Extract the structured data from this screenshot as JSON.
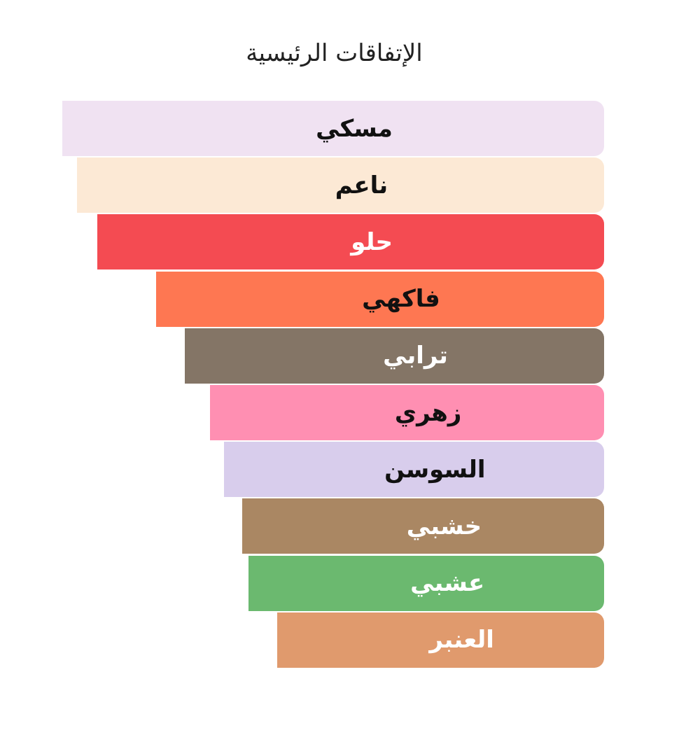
{
  "chart_data": {
    "type": "bar",
    "orientation": "horizontal",
    "title": "الإتفاقات الرئيسية",
    "categories": [
      "مسكي",
      "ناعم",
      "حلو",
      "فاكهي",
      "ترابي",
      "زهري",
      "السوسن",
      "خشبي",
      "عشبي",
      "العنبر"
    ],
    "values": [
      100,
      97.3,
      93.5,
      82.7,
      77.4,
      72.7,
      70.2,
      66.8,
      65.6,
      60.3
    ],
    "colors": [
      "#f0e2f2",
      "#fce9d5",
      "#f44b52",
      "#fe7752",
      "#847566",
      "#ff8fb2",
      "#d8cdec",
      "#aa8763",
      "#6bb96f",
      "#e09a6d"
    ],
    "label_colors": [
      "#111111",
      "#111111",
      "#ffffff",
      "#111111",
      "#ffffff",
      "#111111",
      "#111111",
      "#ffffff",
      "#ffffff",
      "#ffffff"
    ],
    "grid": false,
    "axes": false,
    "ylim": [
      0,
      100
    ]
  }
}
